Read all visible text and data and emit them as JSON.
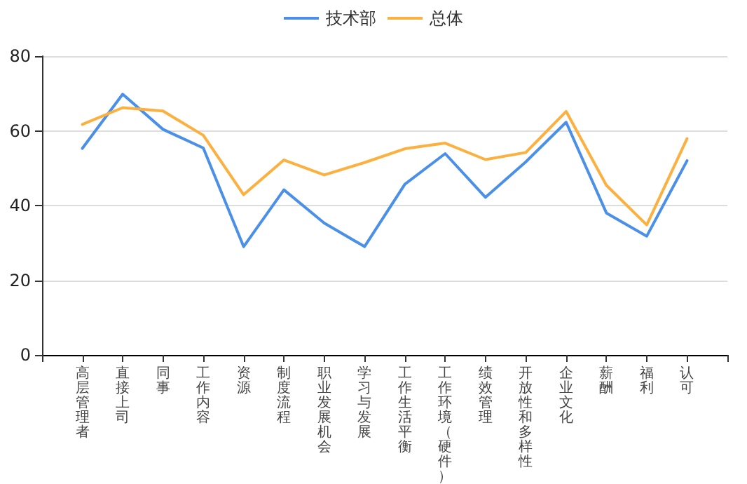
{
  "chart_data": {
    "type": "line",
    "categories": [
      "高层管理者",
      "直接上司",
      "同事",
      "工作内容",
      "资源",
      "制度流程",
      "职业发展机会",
      "学习与发展",
      "工作生活平衡",
      "工作环境（硬件）",
      "绩效管理",
      "开放性和多样性",
      "企业文化",
      "薪酬",
      "福利",
      "认可"
    ],
    "series": [
      {
        "name": "技术部",
        "color": "#4a8fe8",
        "values": [
          55.3,
          69.8,
          60.4,
          55.4,
          29.0,
          44.2,
          35.3,
          29.0,
          45.7,
          53.9,
          42.2,
          51.7,
          62.3,
          38.0,
          31.8,
          52.0
        ]
      },
      {
        "name": "总体",
        "color": "#fbb040",
        "values": [
          61.7,
          66.2,
          65.3,
          58.8,
          42.9,
          52.2,
          48.2,
          51.5,
          55.2,
          56.7,
          52.3,
          54.2,
          65.2,
          45.4,
          34.8,
          57.9
        ]
      }
    ],
    "ylim": [
      0,
      80
    ],
    "yticks": [
      0,
      20,
      40,
      60,
      80
    ],
    "grid": "y",
    "legend": "top",
    "marker": "none",
    "line_style": "solid"
  }
}
